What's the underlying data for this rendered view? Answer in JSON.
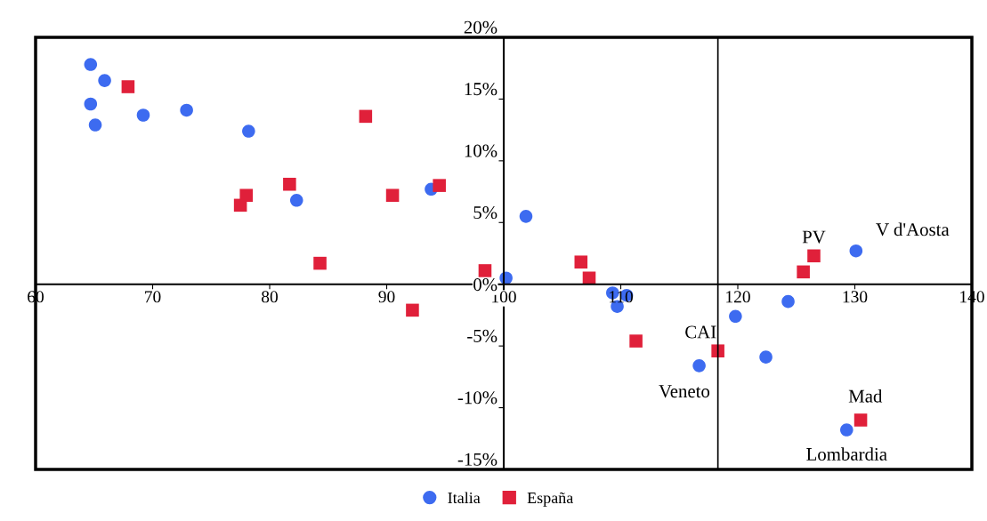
{
  "chart_data": {
    "type": "scatter",
    "xlim": [
      60,
      140
    ],
    "xticks": [
      60,
      70,
      80,
      90,
      100,
      110,
      120,
      130,
      140
    ],
    "ylim": [
      -15,
      20
    ],
    "yticks": [
      {
        "value": -15,
        "label": "-15%"
      },
      {
        "value": -10,
        "label": "-10%"
      },
      {
        "value": -5,
        "label": "-5%"
      },
      {
        "value": 0,
        "label": "0%"
      },
      {
        "value": 5,
        "label": "5%"
      },
      {
        "value": 10,
        "label": "10%"
      },
      {
        "value": 15,
        "label": "15%"
      },
      {
        "value": 20,
        "label": "20%"
      }
    ],
    "grid": false,
    "legend": "bottom",
    "series": [
      {
        "name": "Italia",
        "color": "#3d6bf0",
        "marker": "circle",
        "x": [
          64.7,
          65.9,
          64.7,
          65.1,
          69.2,
          72.9,
          78.2,
          82.3,
          93.8,
          100.2,
          101.9,
          109.3,
          110.5,
          109.7,
          119.8,
          116.7,
          122.4,
          124.3,
          130.1,
          129.3
        ],
        "values": [
          17.8,
          16.5,
          14.6,
          12.9,
          13.7,
          14.1,
          12.4,
          6.8,
          7.7,
          0.5,
          5.5,
          -0.7,
          -0.9,
          -1.8,
          -2.6,
          -6.6,
          -5.9,
          -1.4,
          2.7,
          -11.8
        ]
      },
      {
        "name": "España",
        "color": "#e0203a",
        "marker": "square",
        "x": [
          67.9,
          77.5,
          78.0,
          81.7,
          84.3,
          88.2,
          90.5,
          92.2,
          94.5,
          98.4,
          106.6,
          107.3,
          111.3,
          118.3,
          125.6,
          126.5,
          130.5
        ],
        "values": [
          16.0,
          6.4,
          7.2,
          8.1,
          1.7,
          13.6,
          7.2,
          -2.1,
          8.0,
          1.1,
          1.8,
          0.5,
          -4.6,
          -5.4,
          1.0,
          2.3,
          -11.0
        ]
      }
    ],
    "ref_lines": [
      {
        "axis": "x",
        "value": 118.3,
        "color": "#000000"
      }
    ],
    "annotations": [
      {
        "text": "PV",
        "x": 126.5,
        "y": 2.3
      },
      {
        "text": "V d'Aosta",
        "x": 130.1,
        "y": 2.7
      },
      {
        "text": "CAI",
        "x": 118.3,
        "y": -5.4
      },
      {
        "text": "Veneto",
        "x": 116.7,
        "y": -6.6
      },
      {
        "text": "Mad",
        "x": 130.5,
        "y": -11.0
      },
      {
        "text": "Lombardia",
        "x": 129.3,
        "y": -11.8
      }
    ]
  }
}
